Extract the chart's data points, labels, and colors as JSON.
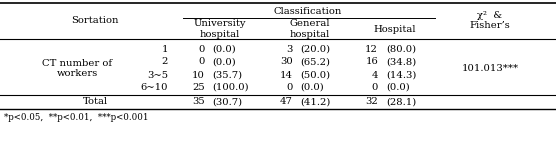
{
  "title_classification": "Classification",
  "col_sortation": "Sortation",
  "col_chi": "χ²  &\nFisher’s",
  "col_univ": "University\nhospital",
  "col_gen": "General\nhospital",
  "col_hosp": "Hospital",
  "row_label_line1": "CT number of",
  "row_label_line2": "workers",
  "rows": [
    {
      "sub": "1",
      "u_n": "0",
      "u_p": "(0.0)",
      "g_n": "3",
      "g_p": "(20.0)",
      "h_n": "12",
      "h_p": "(80.0)"
    },
    {
      "sub": "2",
      "u_n": "0",
      "u_p": "(0.0)",
      "g_n": "30",
      "g_p": "(65.2)",
      "h_n": "16",
      "h_p": "(34.8)"
    },
    {
      "sub": "3~5",
      "u_n": "10",
      "u_p": "(35.7)",
      "g_n": "14",
      "g_p": "(50.0)",
      "h_n": "4",
      "h_p": "(14.3)"
    },
    {
      "sub": "6~10",
      "u_n": "25",
      "u_p": "(100.0)",
      "g_n": "0",
      "g_p": "(0.0)",
      "h_n": "0",
      "h_p": "(0.0)"
    }
  ],
  "total_label": "Total",
  "total": {
    "u_n": "35",
    "u_p": "(30.7)",
    "g_n": "47",
    "g_p": "(41.2)",
    "h_n": "32",
    "h_p": "(28.1)"
  },
  "chi_value": "101.013***",
  "footnote": "*p<0.05,  **p<0.01,  ***p<0.001",
  "bg_color": "#ffffff",
  "text_color": "#000000",
  "font_size": 7.2,
  "small_font": 6.2
}
